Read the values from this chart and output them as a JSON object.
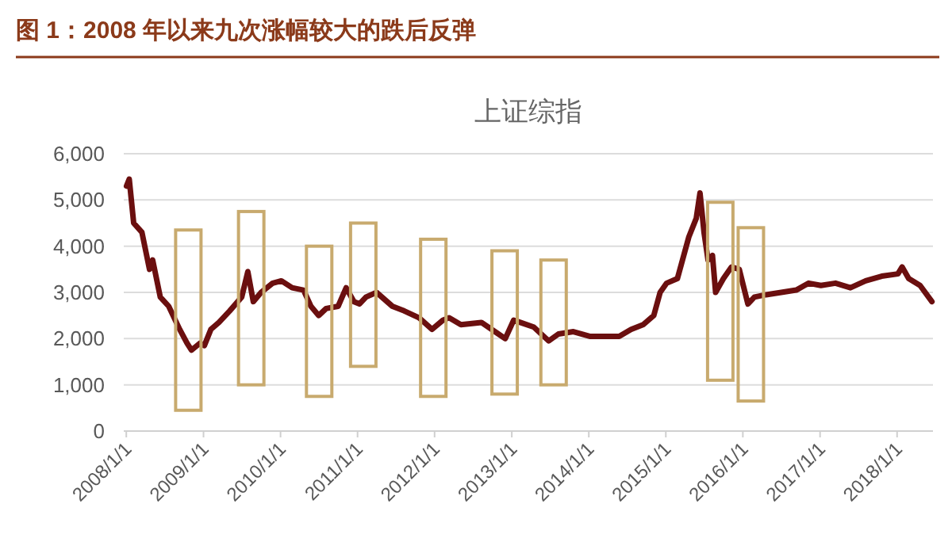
{
  "chart_data": {
    "type": "line",
    "title": "图 1：2008 年以来九次涨幅较大的跌后反弹",
    "subtitle": "上证综指",
    "xlim": [
      "2007-12-20",
      "2018-06-20"
    ],
    "xticks": [
      {
        "value": "2008-01-01",
        "label": "2008/1/1"
      },
      {
        "value": "2009-01-01",
        "label": "2009/1/1"
      },
      {
        "value": "2010-01-01",
        "label": "2010/1/1"
      },
      {
        "value": "2011-01-01",
        "label": "2011/1/1"
      },
      {
        "value": "2012-01-01",
        "label": "2012/1/1"
      },
      {
        "value": "2013-01-01",
        "label": "2013/1/1"
      },
      {
        "value": "2014-01-01",
        "label": "2014/1/1"
      },
      {
        "value": "2015-01-01",
        "label": "2015/1/1"
      },
      {
        "value": "2016-01-01",
        "label": "2016/1/1"
      },
      {
        "value": "2017-01-01",
        "label": "2017/1/1"
      },
      {
        "value": "2018-01-01",
        "label": "2018/1/1"
      }
    ],
    "ylim": [
      0,
      6000
    ],
    "yticks": [
      {
        "value": 0,
        "label": "0"
      },
      {
        "value": 1000,
        "label": "1,000"
      },
      {
        "value": 2000,
        "label": "2,000"
      },
      {
        "value": 3000,
        "label": "3,000"
      },
      {
        "value": 4000,
        "label": "4,000"
      },
      {
        "value": 5000,
        "label": "5,000"
      },
      {
        "value": 6000,
        "label": "6,000"
      }
    ],
    "grid": "y",
    "series": [
      {
        "color": "#6b0f0f",
        "x": [
          "2008-01-02",
          "2008-01-15",
          "2008-02-05",
          "2008-03-15",
          "2008-04-20",
          "2008-05-05",
          "2008-06-10",
          "2008-07-20",
          "2008-09-10",
          "2008-10-15",
          "2008-11-05",
          "2008-12-15",
          "2009-01-05",
          "2009-02-05",
          "2009-03-15",
          "2009-05-05",
          "2009-07-01",
          "2009-07-30",
          "2009-08-25",
          "2009-10-01",
          "2009-11-25",
          "2010-01-05",
          "2010-02-25",
          "2010-04-20",
          "2010-05-25",
          "2010-07-01",
          "2010-08-05",
          "2010-10-01",
          "2010-11-08",
          "2010-12-15",
          "2011-01-10",
          "2011-02-10",
          "2011-04-01",
          "2011-06-15",
          "2011-08-10",
          "2011-10-20",
          "2011-12-20",
          "2012-02-10",
          "2012-03-10",
          "2012-05-05",
          "2012-08-10",
          "2012-10-20",
          "2012-12-01",
          "2013-01-10",
          "2013-02-10",
          "2013-04-15",
          "2013-06-25",
          "2013-08-10",
          "2013-10-20",
          "2014-01-05",
          "2014-03-15",
          "2014-05-25",
          "2014-07-20",
          "2014-09-15",
          "2014-11-05",
          "2014-12-05",
          "2015-01-05",
          "2015-02-25",
          "2015-04-20",
          "2015-05-25",
          "2015-06-12",
          "2015-07-01",
          "2015-07-20",
          "2015-08-10",
          "2015-08-25",
          "2015-10-01",
          "2015-11-08",
          "2015-12-15",
          "2016-01-25",
          "2016-02-25",
          "2016-04-20",
          "2016-07-01",
          "2016-09-10",
          "2016-11-08",
          "2017-01-05",
          "2017-03-15",
          "2017-05-25",
          "2017-08-05",
          "2017-10-20",
          "2018-01-05",
          "2018-01-25",
          "2018-02-25",
          "2018-04-20",
          "2018-06-15"
        ],
        "values": [
          5300,
          5450,
          4500,
          4300,
          3500,
          3700,
          2900,
          2700,
          2200,
          1900,
          1750,
          1900,
          1850,
          2200,
          2350,
          2600,
          2900,
          3450,
          2800,
          3000,
          3200,
          3250,
          3100,
          3050,
          2700,
          2500,
          2650,
          2700,
          3100,
          2800,
          2750,
          2900,
          3000,
          2700,
          2600,
          2450,
          2200,
          2400,
          2450,
          2300,
          2350,
          2130,
          2000,
          2400,
          2350,
          2250,
          1950,
          2100,
          2150,
          2050,
          2050,
          2050,
          2200,
          2300,
          2500,
          3000,
          3200,
          3300,
          4200,
          4600,
          5150,
          4300,
          3700,
          3800,
          3000,
          3300,
          3550,
          3500,
          2750,
          2900,
          2950,
          3000,
          3050,
          3200,
          3150,
          3200,
          3100,
          3250,
          3350,
          3400,
          3550,
          3300,
          3150,
          2800
        ]
      },
      {
        "type": "bar",
        "color": "#c8aa6e",
        "x": [
          "2008-10-21",
          "2009-08-15",
          "2010-07-03",
          "2011-01-28",
          "2011-12-26",
          "2012-11-28",
          "2013-07-18",
          "2015-09-16",
          "2016-02-08"
        ],
        "base": [
          450,
          1000,
          750,
          1400,
          750,
          800,
          1000,
          1100,
          650
        ],
        "values": [
          3900,
          3750,
          3250,
          3100,
          3400,
          3100,
          2700,
          3850,
          3750
        ]
      }
    ]
  }
}
